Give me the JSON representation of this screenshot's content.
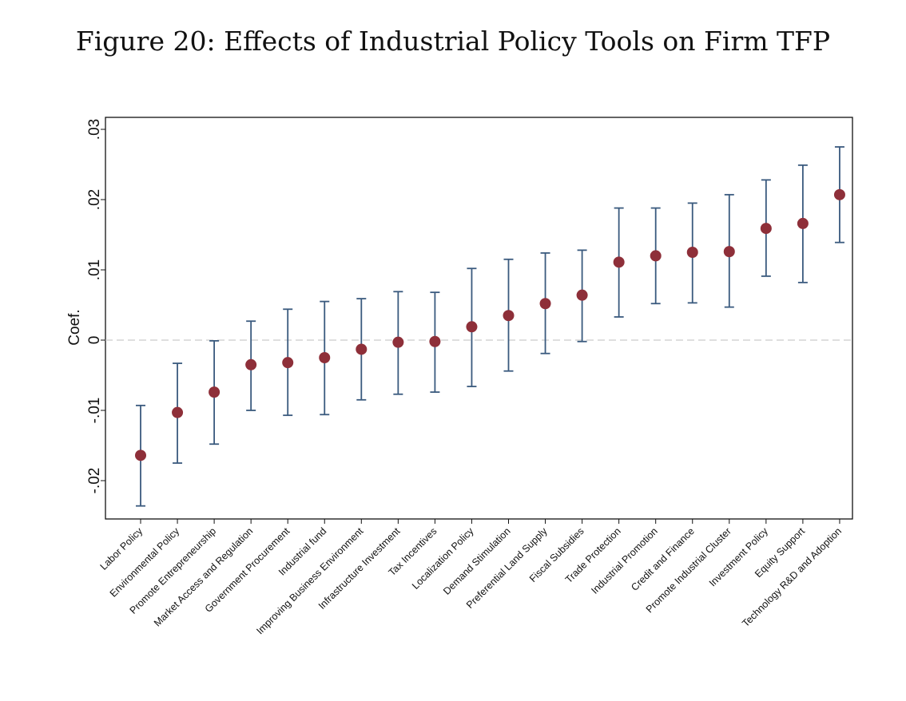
{
  "chart_data": {
    "type": "scatter",
    "subtype": "coefficient plot with confidence intervals",
    "title": "Figure 20: Effects of Industrial Policy Tools on Firm TFP",
    "xlabel": "",
    "ylabel": "Coef.",
    "ylim": [
      -0.026,
      0.031
    ],
    "yticks": [
      -0.02,
      -0.01,
      0,
      0.01,
      0.02,
      0.03
    ],
    "ytick_labels": [
      "-.02",
      "-.01",
      "0",
      ".01",
      ".02",
      ".03"
    ],
    "reference_line": 0,
    "grid": false,
    "colors": {
      "point": "#8e2f39",
      "ci": "#3a5a7e",
      "refline": "#cccccc"
    },
    "categories": [
      "Labor Policy",
      "Environmental Policy",
      "Promote Entrepreneurship",
      "Market Access and Regulation",
      "Government Procurement",
      "Industrial fund",
      "Improving Business Environment",
      "Infrastructure Investment",
      "Tax Incentives",
      "Localization Policy",
      "Demand Stimulation",
      "Preferential Land Supply",
      "Fiscal Subsidies",
      "Trade Protection",
      "Industrial Promotion",
      "Credit and Finance",
      "Promote Industrial Cluster",
      "Investment Policy",
      "Equity Support",
      "Technology R&D and Adoption"
    ],
    "coef": [
      -0.0164,
      -0.0103,
      -0.0074,
      -0.0035,
      -0.0032,
      -0.0025,
      -0.0013,
      -0.0003,
      -0.0002,
      0.0019,
      0.0035,
      0.0052,
      0.0064,
      0.0111,
      0.012,
      0.0125,
      0.0126,
      0.0159,
      0.0166,
      0.0207
    ],
    "ci_low": [
      -0.0236,
      -0.0175,
      -0.0148,
      -0.01,
      -0.0107,
      -0.0106,
      -0.0085,
      -0.0077,
      -0.0074,
      -0.0066,
      -0.0044,
      -0.0019,
      -0.0002,
      0.0033,
      0.0052,
      0.0053,
      0.0047,
      0.0091,
      0.0082,
      0.0139
    ],
    "ci_high": [
      -0.0093,
      -0.0033,
      -0.0001,
      0.0027,
      0.0044,
      0.0055,
      0.0059,
      0.0069,
      0.0068,
      0.0102,
      0.0115,
      0.0124,
      0.0128,
      0.0188,
      0.0188,
      0.0195,
      0.0207,
      0.0228,
      0.0249,
      0.0275
    ]
  }
}
